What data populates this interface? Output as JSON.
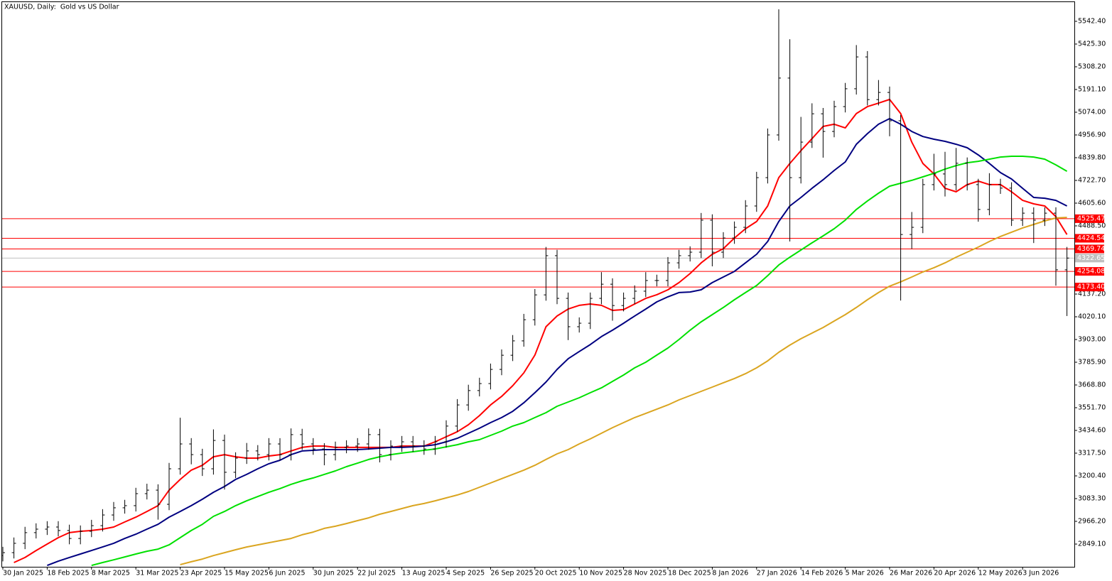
{
  "chart_data": {
    "type": "ohlc",
    "title": "XAUUSD, Daily:  Gold vs US Dollar",
    "categories": [
      "30 Jan 2025",
      null,
      null,
      null,
      "18 Feb 2025",
      null,
      null,
      null,
      "8 Mar 2025",
      null,
      null,
      null,
      "31 Mar 2025",
      null,
      null,
      null,
      "23 Apr 2025",
      null,
      null,
      null,
      "15 May 2025",
      null,
      null,
      null,
      "6 Jun 2025",
      null,
      null,
      null,
      "30 Jun 2025",
      null,
      null,
      null,
      "22 Jul 2025",
      null,
      null,
      null,
      "13 Aug 2025",
      null,
      null,
      null,
      "4 Sep 2025",
      null,
      null,
      null,
      "26 Sep 2025",
      null,
      null,
      null,
      "20 Oct 2025",
      null,
      null,
      null,
      "10 Nov 2025",
      null,
      null,
      null,
      "28 Nov 2025",
      null,
      null,
      null,
      "18 Dec 2025",
      null,
      null,
      null,
      "8 Jan 2026",
      null,
      null,
      null,
      "27 Jan 2026",
      null,
      null,
      null,
      "14 Feb 2026",
      null,
      null,
      null,
      "5 Mar 2026",
      null,
      null,
      null,
      "26 Mar 2026",
      null,
      null,
      null,
      "20 Apr 2026",
      null,
      null,
      null,
      "12 May 2026",
      null,
      null,
      null,
      "3 Jun 2026",
      null,
      null,
      null,
      null
    ],
    "open": [
      2790,
      2805,
      2853,
      2908,
      2926,
      2937,
      2919,
      2878,
      2915,
      2944,
      2999,
      3036,
      3047,
      3109,
      3127,
      3054,
      3237,
      3365,
      3310,
      3237,
      3383,
      3219,
      3292,
      3329,
      3310,
      3365,
      3310,
      3413,
      3365,
      3339,
      3310,
      3347,
      3354,
      3365,
      3413,
      3310,
      3354,
      3376,
      3354,
      3339,
      3376,
      3457,
      3566,
      3640,
      3676,
      3749,
      3822,
      3896,
      4005,
      4133,
      4335,
      4115,
      3969,
      3987,
      4115,
      4188,
      4078,
      4115,
      4152,
      4207,
      4207,
      4298,
      4335,
      4353,
      4518,
      4353,
      4426,
      4481,
      4591,
      4737,
      4957,
      5250,
      4737,
      4920,
      5066,
      4975,
      5103,
      5195,
      5359,
      5139,
      5176,
      5030,
      4444,
      4481,
      4701,
      4756,
      4701,
      4811,
      4701,
      4573,
      4701,
      4683,
      4518,
      4554,
      4518,
      4554,
      4262
    ],
    "high": [
      2835,
      2883,
      2938,
      2956,
      2967,
      2967,
      2949,
      2945,
      2974,
      3029,
      3066,
      3077,
      3139,
      3160,
      3157,
      3267,
      3500,
      3395,
      3340,
      3440,
      3413,
      3322,
      3370,
      3359,
      3395,
      3395,
      3445,
      3443,
      3395,
      3369,
      3377,
      3384,
      3395,
      3445,
      3443,
      3384,
      3406,
      3406,
      3384,
      3406,
      3487,
      3596,
      3670,
      3706,
      3779,
      3852,
      3926,
      4035,
      4163,
      4380,
      4365,
      4145,
      4017,
      4145,
      4250,
      4218,
      4145,
      4182,
      4250,
      4237,
      4328,
      4365,
      4383,
      4555,
      4548,
      4456,
      4511,
      4621,
      4767,
      4990,
      5604,
      5450,
      5050,
      5120,
      5096,
      5133,
      5225,
      5420,
      5389,
      5240,
      5206,
      5060,
      4560,
      4731,
      4860,
      4870,
      4890,
      4841,
      4731,
      4760,
      4731,
      4713,
      4584,
      4584,
      4584,
      4584,
      4380
    ],
    "low": [
      2760,
      2775,
      2823,
      2878,
      2896,
      2889,
      2848,
      2848,
      2885,
      2914,
      2969,
      3006,
      3017,
      3079,
      2975,
      3024,
      3207,
      3260,
      3200,
      3207,
      3130,
      3189,
      3262,
      3280,
      3280,
      3280,
      3280,
      3335,
      3309,
      3255,
      3280,
      3317,
      3324,
      3335,
      3270,
      3280,
      3324,
      3324,
      3309,
      3309,
      3346,
      3427,
      3536,
      3610,
      3646,
      3719,
      3792,
      3866,
      3975,
      4103,
      4085,
      3900,
      3939,
      3957,
      4085,
      4000,
      4048,
      4085,
      4122,
      4177,
      4177,
      4268,
      4305,
      4323,
      4280,
      4323,
      4396,
      4451,
      4561,
      4707,
      4927,
      4408,
      4707,
      4890,
      4840,
      4945,
      5073,
      5165,
      5109,
      5109,
      4950,
      4104,
      4370,
      4451,
      4671,
      4640,
      4671,
      4671,
      4510,
      4543,
      4653,
      4488,
      4488,
      4400,
      4488,
      4180,
      4024
    ],
    "close": [
      2805,
      2853,
      2908,
      2926,
      2937,
      2919,
      2878,
      2915,
      2944,
      2999,
      3036,
      3047,
      3109,
      3127,
      3054,
      3237,
      3365,
      3310,
      3237,
      3383,
      3219,
      3292,
      3329,
      3310,
      3365,
      3310,
      3413,
      3365,
      3339,
      3310,
      3347,
      3354,
      3365,
      3413,
      3310,
      3354,
      3376,
      3354,
      3339,
      3376,
      3457,
      3566,
      3640,
      3676,
      3749,
      3822,
      3896,
      4005,
      4133,
      4335,
      4115,
      3969,
      3987,
      4115,
      4188,
      4078,
      4115,
      4152,
      4207,
      4207,
      4298,
      4335,
      4353,
      4518,
      4353,
      4426,
      4481,
      4591,
      4737,
      4957,
      5250,
      4737,
      4920,
      5066,
      4975,
      5103,
      5195,
      5359,
      5139,
      5176,
      5030,
      4444,
      4481,
      4701,
      4756,
      4701,
      4811,
      4701,
      4573,
      4701,
      4683,
      4518,
      4554,
      4518,
      4554,
      4262,
      4322.65
    ],
    "bar_color": "#000000",
    "series": [
      {
        "color": "#ff0000",
        "values": [
          null,
          2754,
          2780,
          2816,
          2849,
          2882,
          2908,
          2915,
          2919,
          2926,
          2937,
          2963,
          2988,
          3017,
          3047,
          3127,
          3182,
          3230,
          3255,
          3299,
          3310,
          3299,
          3292,
          3292,
          3303,
          3310,
          3329,
          3347,
          3354,
          3354,
          3347,
          3347,
          3347,
          3347,
          3347,
          3347,
          3354,
          3354,
          3354,
          3376,
          3402,
          3428,
          3464,
          3511,
          3566,
          3610,
          3665,
          3731,
          3823,
          3969,
          4024,
          4060,
          4079,
          4086,
          4079,
          4053,
          4057,
          4086,
          4115,
          4134,
          4159,
          4196,
          4243,
          4298,
          4342,
          4371,
          4426,
          4474,
          4511,
          4591,
          4737,
          4810,
          4876,
          4938,
          5001,
          5012,
          4993,
          5067,
          5103,
          5121,
          5140,
          5067,
          4920,
          4810,
          4756,
          4682,
          4664,
          4701,
          4719,
          4701,
          4701,
          4664,
          4620,
          4602,
          4591,
          4536,
          4444
        ]
      },
      {
        "color": "#000080",
        "values": [
          null,
          null,
          null,
          null,
          2739,
          2761,
          2780,
          2798,
          2816,
          2834,
          2853,
          2878,
          2900,
          2926,
          2951,
          2988,
          3017,
          3047,
          3080,
          3116,
          3146,
          3182,
          3208,
          3237,
          3263,
          3281,
          3310,
          3329,
          3332,
          3336,
          3336,
          3336,
          3336,
          3339,
          3343,
          3347,
          3347,
          3350,
          3354,
          3361,
          3376,
          3394,
          3420,
          3446,
          3475,
          3501,
          3533,
          3577,
          3629,
          3684,
          3749,
          3804,
          3841,
          3877,
          3918,
          3951,
          3987,
          4024,
          4060,
          4097,
          4123,
          4145,
          4148,
          4159,
          4196,
          4225,
          4254,
          4298,
          4342,
          4408,
          4511,
          4591,
          4635,
          4682,
          4726,
          4774,
          4818,
          4909,
          4964,
          5012,
          5041,
          5012,
          4975,
          4949,
          4935,
          4924,
          4909,
          4891,
          4854,
          4810,
          4763,
          4730,
          4682,
          4635,
          4631,
          4620,
          4591
        ]
      },
      {
        "color": "#00e000",
        "values": [
          null,
          null,
          null,
          null,
          null,
          null,
          null,
          null,
          2739,
          2754,
          2768,
          2783,
          2798,
          2812,
          2823,
          2845,
          2882,
          2919,
          2951,
          2992,
          3017,
          3047,
          3072,
          3094,
          3116,
          3135,
          3157,
          3175,
          3190,
          3208,
          3226,
          3248,
          3266,
          3285,
          3299,
          3310,
          3318,
          3325,
          3332,
          3339,
          3350,
          3361,
          3376,
          3387,
          3409,
          3431,
          3457,
          3475,
          3501,
          3526,
          3559,
          3581,
          3603,
          3629,
          3654,
          3687,
          3720,
          3757,
          3786,
          3823,
          3859,
          3903,
          3951,
          3994,
          4031,
          4068,
          4108,
          4145,
          4181,
          4232,
          4287,
          4327,
          4364,
          4401,
          4437,
          4474,
          4518,
          4573,
          4617,
          4657,
          4693,
          4708,
          4723,
          4741,
          4759,
          4781,
          4799,
          4814,
          4821,
          4832,
          4843,
          4847,
          4847,
          4843,
          4832,
          4803,
          4770
        ]
      },
      {
        "color": "#daa520",
        "values": [
          null,
          null,
          null,
          null,
          null,
          null,
          null,
          null,
          null,
          null,
          null,
          null,
          null,
          null,
          null,
          null,
          2743,
          2758,
          2772,
          2790,
          2805,
          2820,
          2834,
          2845,
          2856,
          2867,
          2878,
          2897,
          2911,
          2930,
          2941,
          2955,
          2970,
          2984,
          3003,
          3017,
          3032,
          3047,
          3058,
          3072,
          3087,
          3102,
          3120,
          3142,
          3164,
          3186,
          3208,
          3230,
          3255,
          3285,
          3314,
          3336,
          3365,
          3391,
          3420,
          3449,
          3475,
          3501,
          3522,
          3544,
          3566,
          3592,
          3614,
          3636,
          3658,
          3680,
          3702,
          3727,
          3757,
          3793,
          3837,
          3874,
          3907,
          3936,
          3965,
          3998,
          4031,
          4068,
          4108,
          4145,
          4178,
          4200,
          4225,
          4251,
          4273,
          4298,
          4327,
          4353,
          4379,
          4408,
          4434,
          4456,
          4478,
          4496,
          4514,
          4529,
          4532
        ]
      }
    ],
    "levels": [
      4525.47,
      4424.54,
      4369.74,
      4254.08,
      {
        "value": 4173.4,
        "label": "4173.40"
      }
    ],
    "level_color": "#ff0000",
    "last_price": 4322.65,
    "last_price_color": "#c0c0c0",
    "ylim": [
      2735.7,
      5641.2
    ],
    "yticks": [
      {
        "value": 5542.4,
        "label": "5542.40"
      },
      {
        "value": 5425.3,
        "label": "5425.30"
      },
      {
        "value": 5308.2,
        "label": "5308.20"
      },
      {
        "value": 5191.1,
        "label": "5191.10"
      },
      {
        "value": 5074,
        "label": "5074.00"
      },
      {
        "value": 4956.9,
        "label": "4956.90"
      },
      {
        "value": 4839.8,
        "label": "4839.80"
      },
      {
        "value": 4722.7,
        "label": "4722.70"
      },
      {
        "value": 4605.6,
        "label": "4605.60"
      },
      {
        "value": 4488.5,
        "label": "4488.50"
      },
      {
        "value": 4137.2,
        "label": "4137.20"
      },
      {
        "value": 4020.1,
        "label": "4020.10"
      },
      {
        "value": 3903,
        "label": "3903.00"
      },
      {
        "value": 3785.9,
        "label": "3785.90"
      },
      {
        "value": 3668.8,
        "label": "3668.80"
      },
      {
        "value": 3551.7,
        "label": "3551.70"
      },
      {
        "value": 3434.6,
        "label": "3434.60"
      },
      {
        "value": 3317.5,
        "label": "3317.50"
      },
      {
        "value": 3200.4,
        "label": "3200.40"
      },
      {
        "value": 3083.3,
        "label": "3083.30"
      },
      {
        "value": 2966.2,
        "label": "2966.20"
      },
      {
        "value": 2849.1,
        "label": "2849.10"
      }
    ],
    "grid": false
  }
}
